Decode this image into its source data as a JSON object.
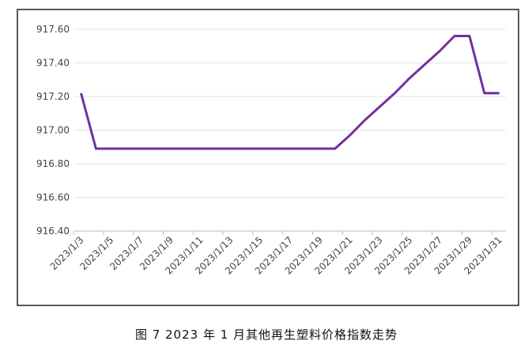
{
  "chart_data": {
    "type": "line",
    "caption": "图 7  2023 年 1 月其他再生塑料价格指数走势",
    "categories": [
      "2023/1/3",
      null,
      "2023/1/5",
      null,
      "2023/1/7",
      null,
      "2023/1/9",
      null,
      "2023/1/11",
      null,
      "2023/1/13",
      null,
      "2023/1/15",
      null,
      "2023/1/17",
      null,
      "2023/1/19",
      null,
      "2023/1/21",
      null,
      "2023/1/23",
      null,
      "2023/1/25",
      null,
      "2023/1/27",
      null,
      "2023/1/29",
      null,
      "2023/1/31"
    ],
    "series": [
      {
        "color": "#7030a0",
        "values": [
          917.22,
          916.89,
          916.89,
          916.89,
          916.89,
          916.89,
          916.89,
          916.89,
          916.89,
          916.89,
          916.89,
          916.89,
          916.89,
          916.89,
          916.89,
          916.89,
          916.89,
          916.89,
          916.97,
          917.06,
          917.14,
          917.22,
          917.31,
          917.39,
          917.47,
          917.56,
          917.56,
          917.22,
          917.22
        ]
      }
    ],
    "ylim": [
      916.4,
      917.6
    ],
    "yticks": [
      {
        "value": 916.4,
        "label": "916.40"
      },
      {
        "value": 916.6,
        "label": "916.60"
      },
      {
        "value": 916.8,
        "label": "916.80"
      },
      {
        "value": 917.0,
        "label": "917.00"
      },
      {
        "value": 917.2,
        "label": "917.20"
      },
      {
        "value": 917.4,
        "label": "917.40"
      },
      {
        "value": 917.6,
        "label": "917.60"
      }
    ],
    "grid": true
  }
}
